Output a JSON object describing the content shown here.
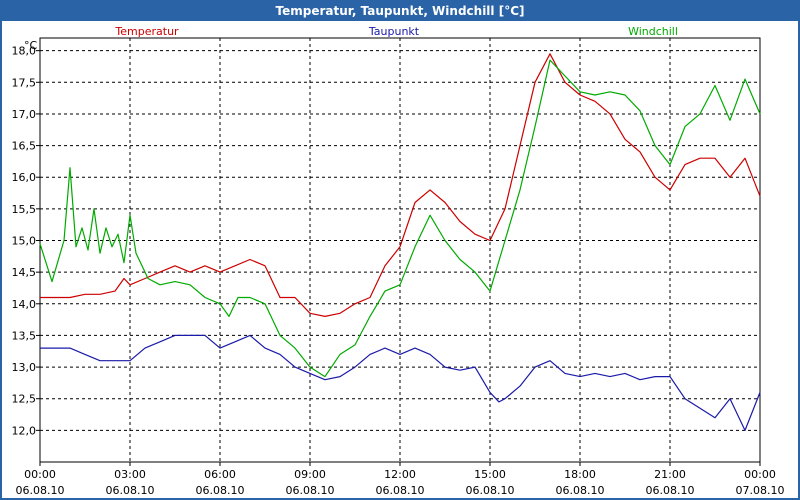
{
  "window": {
    "title": "Temperatur, Taupunkt, Windchill [°C]"
  },
  "chart_data": {
    "type": "line",
    "title": "Temperatur, Taupunkt, Windchill [°C]",
    "ylabel": "°C",
    "xlabel": "",
    "ylim": [
      11.5,
      18.2
    ],
    "xlim": [
      0,
      24
    ],
    "grid": true,
    "legend_position": "top",
    "y_ticks": [
      {
        "value": 12.0,
        "label": "12,0"
      },
      {
        "value": 12.5,
        "label": "12,5"
      },
      {
        "value": 13.0,
        "label": "13,0"
      },
      {
        "value": 13.5,
        "label": "13,5"
      },
      {
        "value": 14.0,
        "label": "14,0"
      },
      {
        "value": 14.5,
        "label": "14,5"
      },
      {
        "value": 15.0,
        "label": "15,0"
      },
      {
        "value": 15.5,
        "label": "15,5"
      },
      {
        "value": 16.0,
        "label": "16,0"
      },
      {
        "value": 16.5,
        "label": "16,5"
      },
      {
        "value": 17.0,
        "label": "17,0"
      },
      {
        "value": 17.5,
        "label": "17,5"
      },
      {
        "value": 18.0,
        "label": "18,0"
      }
    ],
    "x_ticks": [
      {
        "value": 0,
        "time": "00:00",
        "date": "06.08.10"
      },
      {
        "value": 3,
        "time": "03:00",
        "date": "06.08.10"
      },
      {
        "value": 6,
        "time": "06:00",
        "date": "06.08.10"
      },
      {
        "value": 9,
        "time": "09:00",
        "date": "06.08.10"
      },
      {
        "value": 12,
        "time": "12:00",
        "date": "06.08.10"
      },
      {
        "value": 15,
        "time": "15:00",
        "date": "06.08.10"
      },
      {
        "value": 18,
        "time": "18:00",
        "date": "06.08.10"
      },
      {
        "value": 21,
        "time": "21:00",
        "date": "06.08.10"
      },
      {
        "value": 24,
        "time": "00:00",
        "date": "07.08.10"
      }
    ],
    "series": [
      {
        "name": "Temperatur",
        "color": "#cc0000",
        "x": [
          0,
          1.0,
          1.5,
          2.0,
          2.5,
          2.8,
          3.0,
          3.5,
          4.0,
          4.5,
          5.0,
          5.5,
          6.0,
          6.5,
          7.0,
          7.5,
          8.0,
          8.5,
          9.0,
          9.5,
          10.0,
          10.5,
          11.0,
          11.5,
          12.0,
          12.5,
          13.0,
          13.5,
          14.0,
          14.5,
          15.0,
          15.5,
          16.0,
          16.5,
          17.0,
          17.5,
          18.0,
          18.5,
          19.0,
          19.5,
          20.0,
          20.5,
          21.0,
          21.5,
          22.0,
          22.5,
          23.0,
          23.5,
          24.0
        ],
        "values": [
          14.1,
          14.1,
          14.15,
          14.15,
          14.2,
          14.4,
          14.3,
          14.4,
          14.5,
          14.6,
          14.5,
          14.6,
          14.5,
          14.6,
          14.7,
          14.6,
          14.1,
          14.1,
          13.85,
          13.8,
          13.85,
          14.0,
          14.1,
          14.6,
          14.9,
          15.6,
          15.8,
          15.6,
          15.3,
          15.1,
          15.0,
          15.5,
          16.5,
          17.5,
          17.95,
          17.5,
          17.3,
          17.2,
          17.0,
          16.6,
          16.4,
          16.0,
          15.8,
          16.2,
          16.3,
          16.3,
          16.0,
          16.3,
          15.7
        ]
      },
      {
        "name": "Taupunkt",
        "color": "#1a1aa8",
        "x": [
          0,
          1.0,
          1.5,
          2.0,
          3.0,
          3.5,
          4.0,
          4.5,
          5.0,
          5.5,
          6.0,
          6.5,
          7.0,
          7.5,
          8.0,
          8.5,
          9.0,
          9.5,
          10.0,
          10.5,
          11.0,
          11.5,
          12.0,
          12.5,
          13.0,
          13.5,
          14.0,
          14.5,
          15.0,
          15.3,
          15.5,
          16.0,
          16.5,
          17.0,
          17.5,
          18.0,
          18.5,
          19.0,
          19.5,
          20.0,
          20.5,
          21.0,
          21.5,
          22.0,
          22.5,
          23.0,
          23.5,
          24.0
        ],
        "values": [
          13.3,
          13.3,
          13.2,
          13.1,
          13.1,
          13.3,
          13.4,
          13.5,
          13.5,
          13.5,
          13.3,
          13.4,
          13.5,
          13.3,
          13.2,
          13.0,
          12.9,
          12.8,
          12.85,
          13.0,
          13.2,
          13.3,
          13.2,
          13.3,
          13.2,
          13.0,
          12.95,
          13.0,
          12.6,
          12.45,
          12.5,
          12.7,
          13.0,
          13.1,
          12.9,
          12.85,
          12.9,
          12.85,
          12.9,
          12.8,
          12.85,
          12.85,
          12.5,
          12.35,
          12.2,
          12.5,
          12.0,
          12.6
        ]
      },
      {
        "name": "Windchill",
        "color": "#00aa00",
        "x": [
          0,
          0.4,
          0.8,
          1.0,
          1.2,
          1.4,
          1.6,
          1.8,
          2.0,
          2.2,
          2.4,
          2.6,
          2.8,
          3.0,
          3.2,
          3.4,
          3.6,
          4.0,
          4.5,
          5.0,
          5.5,
          6.0,
          6.3,
          6.6,
          7.0,
          7.5,
          8.0,
          8.5,
          9.0,
          9.5,
          10.0,
          10.5,
          11.0,
          11.5,
          12.0,
          12.5,
          13.0,
          13.5,
          14.0,
          14.5,
          15.0,
          15.5,
          16.0,
          16.5,
          17.0,
          17.5,
          18.0,
          18.5,
          19.0,
          19.5,
          20.0,
          20.5,
          21.0,
          21.5,
          22.0,
          22.5,
          23.0,
          23.5,
          24.0
        ],
        "values": [
          14.95,
          14.35,
          15.0,
          16.15,
          14.9,
          15.2,
          14.85,
          15.5,
          14.8,
          15.2,
          14.9,
          15.1,
          14.65,
          15.4,
          14.8,
          14.6,
          14.4,
          14.3,
          14.35,
          14.3,
          14.1,
          14.0,
          13.8,
          14.1,
          14.1,
          14.0,
          13.5,
          13.3,
          13.0,
          12.85,
          13.2,
          13.35,
          13.8,
          14.2,
          14.3,
          14.9,
          15.4,
          15.0,
          14.7,
          14.5,
          14.2,
          15.0,
          15.8,
          16.8,
          17.85,
          17.6,
          17.35,
          17.3,
          17.35,
          17.3,
          17.05,
          16.5,
          16.2,
          16.8,
          17.0,
          17.45,
          16.9,
          17.55,
          17.0
        ]
      }
    ]
  }
}
